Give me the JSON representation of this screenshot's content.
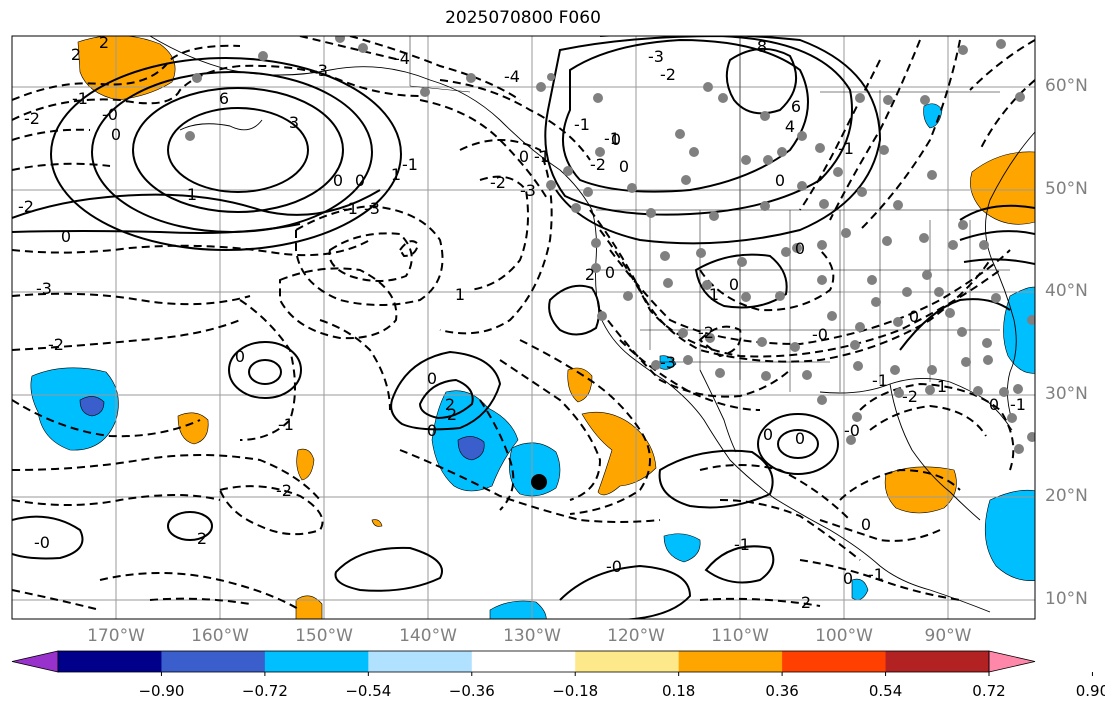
{
  "title": "2025070800 F060",
  "lat_labels": [
    {
      "deg": 60,
      "text": "60°N"
    },
    {
      "deg": 50,
      "text": "50°N"
    },
    {
      "deg": 40,
      "text": "40°N"
    },
    {
      "deg": 30,
      "text": "30°N"
    },
    {
      "deg": 20,
      "text": "20°N"
    },
    {
      "deg": 10,
      "text": "10°N"
    }
  ],
  "lon_labels": [
    {
      "deg": -170,
      "text": "170°W"
    },
    {
      "deg": -160,
      "text": "160°W"
    },
    {
      "deg": -150,
      "text": "150°W"
    },
    {
      "deg": -140,
      "text": "140°W"
    },
    {
      "deg": -130,
      "text": "130°W"
    },
    {
      "deg": -120,
      "text": "120°W"
    },
    {
      "deg": -110,
      "text": "110°W"
    },
    {
      "deg": -100,
      "text": "100°W"
    },
    {
      "deg": -90,
      "text": "90°W"
    }
  ],
  "colorbar": {
    "colors": [
      "#9932cc",
      "#00008b",
      "#3a5fcd",
      "#00bfff",
      "#b0e2ff",
      "#ffffff",
      "#fee98a",
      "#ffa500",
      "#ff4000",
      "#b22222",
      "#ff88aa"
    ],
    "ticks": [
      "−0.90",
      "−0.72",
      "−0.54",
      "−0.36",
      "−0.18",
      "0.18",
      "0.36",
      "0.54",
      "0.72",
      "0.90"
    ]
  },
  "contour_labels": [
    "2",
    "2",
    "-1",
    "-2",
    "-0",
    "0",
    "-3",
    "-4",
    "6",
    "3",
    "1",
    "0",
    "-2",
    "-3",
    "-2",
    "0",
    "-1",
    "0",
    "-1",
    "1",
    "-3",
    "-4",
    "-2",
    "-1",
    "-1",
    "0",
    "0",
    "-1",
    "0",
    "-2",
    "-3",
    "1",
    "0",
    "2",
    "0",
    "-1",
    "0",
    "8",
    "6",
    "4",
    "0",
    "-2",
    "-3",
    "-1",
    "0",
    "-2",
    "-3",
    "1",
    "0",
    "2",
    "0",
    "-0",
    "-1",
    "-2",
    "1",
    "0",
    "-1",
    "0",
    "0",
    "0",
    "-0",
    "0",
    "2",
    "-1",
    "0",
    "-1",
    "-0",
    "2",
    "-2",
    "2",
    "-0"
  ]
}
